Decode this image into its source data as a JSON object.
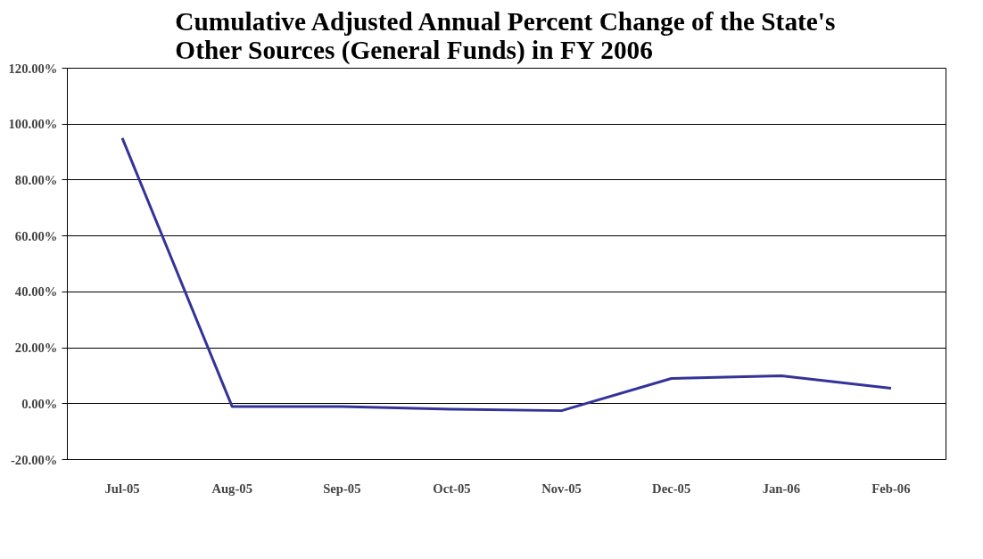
{
  "chart_data": {
    "type": "line",
    "title": "Cumulative Adjusted Annual Percent Change of the State's\nOther Sources (General Funds) in FY 2006",
    "categories": [
      "Jul-05",
      "Aug-05",
      "Sep-05",
      "Oct-05",
      "Nov-05",
      "Dec-05",
      "Jan-06",
      "Feb-06"
    ],
    "series": [
      {
        "color": "#333399",
        "values": [
          95,
          -1,
          -1,
          -2,
          -2.5,
          9,
          10,
          5.5
        ]
      }
    ],
    "ylim": [
      -20,
      120
    ],
    "yticks": [
      {
        "value": -20,
        "label": "-20.00%"
      },
      {
        "value": 0,
        "label": "0.00%"
      },
      {
        "value": 20,
        "label": "20.00%"
      },
      {
        "value": 40,
        "label": "40.00%"
      },
      {
        "value": 60,
        "label": "60.00%"
      },
      {
        "value": 80,
        "label": "80.00%"
      },
      {
        "value": 100,
        "label": "100.00%"
      },
      {
        "value": 120,
        "label": "120.00%"
      }
    ],
    "grid": "y",
    "marker": "none",
    "line_style": "solid"
  }
}
